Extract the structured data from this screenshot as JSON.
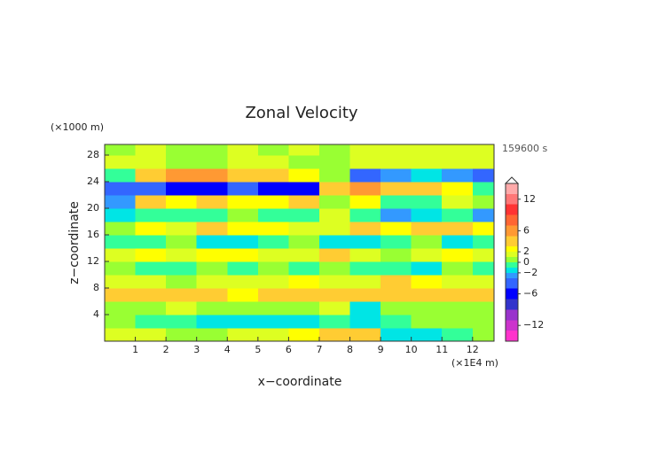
{
  "chart_data": {
    "type": "heatmap",
    "title": "Zonal Velocity",
    "y_unit": "(×1000 m)",
    "x_unit": "(×1E4 m)",
    "time_label": "159600 s",
    "xlabel": "x−coordinate",
    "ylabel": "z−coordinate",
    "xlim": [
      0,
      12.7
    ],
    "ylim": [
      0,
      29.6
    ],
    "xticks": [
      1,
      2,
      3,
      4,
      5,
      6,
      7,
      8,
      9,
      10,
      11,
      12
    ],
    "yticks": [
      4,
      8,
      12,
      16,
      20,
      24,
      28
    ],
    "x": [
      0.5,
      1.5,
      2.5,
      3.5,
      4.5,
      5.5,
      6.5,
      7.5,
      8.5,
      9.5,
      10.5,
      11.5,
      12.5
    ],
    "z": [
      1,
      3,
      5,
      7,
      9,
      11,
      13,
      15,
      17,
      19,
      21,
      23,
      25,
      27,
      29
    ],
    "values": [
      [
        1,
        1,
        0.5,
        0.5,
        1,
        1,
        2,
        3,
        3,
        -2,
        -2,
        -1,
        0
      ],
      [
        0,
        -0.5,
        -1,
        -2,
        -2,
        -2,
        -2,
        -1,
        -2,
        -1,
        0,
        0,
        0.5
      ],
      [
        0.5,
        0.5,
        1,
        0,
        0,
        0,
        0.5,
        1,
        -2,
        0.5,
        0.5,
        0,
        0
      ],
      [
        3,
        3,
        3,
        3,
        2,
        3,
        3,
        3,
        4,
        4,
        3,
        3,
        3
      ],
      [
        1,
        1,
        0,
        1,
        1,
        1,
        2,
        1,
        1,
        3,
        2,
        1,
        1
      ],
      [
        0,
        -1,
        -1,
        0,
        -1,
        0,
        -1,
        0,
        -0.5,
        -1,
        -2,
        0,
        -1
      ],
      [
        1,
        2,
        1,
        2,
        2,
        1,
        1,
        3,
        1,
        0,
        1,
        2,
        1
      ],
      [
        -1,
        -1,
        0,
        -2,
        -2,
        -1,
        0,
        -2,
        -2,
        -1,
        0,
        -2,
        -1
      ],
      [
        0,
        2,
        1,
        3,
        2,
        2,
        1,
        1,
        3,
        2,
        3,
        3,
        2
      ],
      [
        -2,
        -1,
        -1,
        -1,
        0,
        -1,
        -1,
        1,
        -1,
        -3,
        -2,
        -1,
        -3
      ],
      [
        -3,
        3,
        2,
        3,
        2,
        2,
        3,
        0,
        2,
        -1,
        -1,
        1,
        0
      ],
      [
        -4,
        -5,
        -6,
        -6,
        -5,
        -6,
        -7,
        3,
        5,
        4,
        3,
        2,
        -1
      ],
      [
        -1,
        3,
        5,
        5,
        4,
        3,
        2,
        0,
        -4,
        -3,
        -2,
        -3,
        -5
      ],
      [
        1,
        1,
        0,
        0,
        1,
        1,
        0,
        0,
        1,
        1,
        1,
        1,
        1
      ],
      [
        0.5,
        1,
        0,
        0.5,
        1,
        0,
        1,
        0.5,
        1,
        1,
        1,
        1,
        1
      ]
    ],
    "levels": [
      -15,
      -13,
      -11,
      -9,
      -7,
      -5,
      -3,
      -2,
      -1,
      0,
      1,
      2,
      3,
      5,
      7,
      9,
      11,
      13,
      15
    ],
    "colors": [
      "#ff33cc",
      "#cc33cc",
      "#9933cc",
      "#3333cc",
      "#0000ff",
      "#3366ff",
      "#3399ff",
      "#00e5e5",
      "#33ff99",
      "#99ff33",
      "#ddff22",
      "#ffff00",
      "#ffcc33",
      "#ff9933",
      "#ff6633",
      "#ff3333",
      "#ff7777",
      "#ffaaaa"
    ],
    "colorbar_ticks": [
      {
        "value": 12,
        "label": "12"
      },
      {
        "value": 6,
        "label": "6"
      },
      {
        "value": 2,
        "label": "2"
      },
      {
        "value": 0,
        "label": "0"
      },
      {
        "value": -2,
        "label": "−2"
      },
      {
        "value": -6,
        "label": "−6"
      },
      {
        "value": -12,
        "label": "−12"
      }
    ]
  }
}
